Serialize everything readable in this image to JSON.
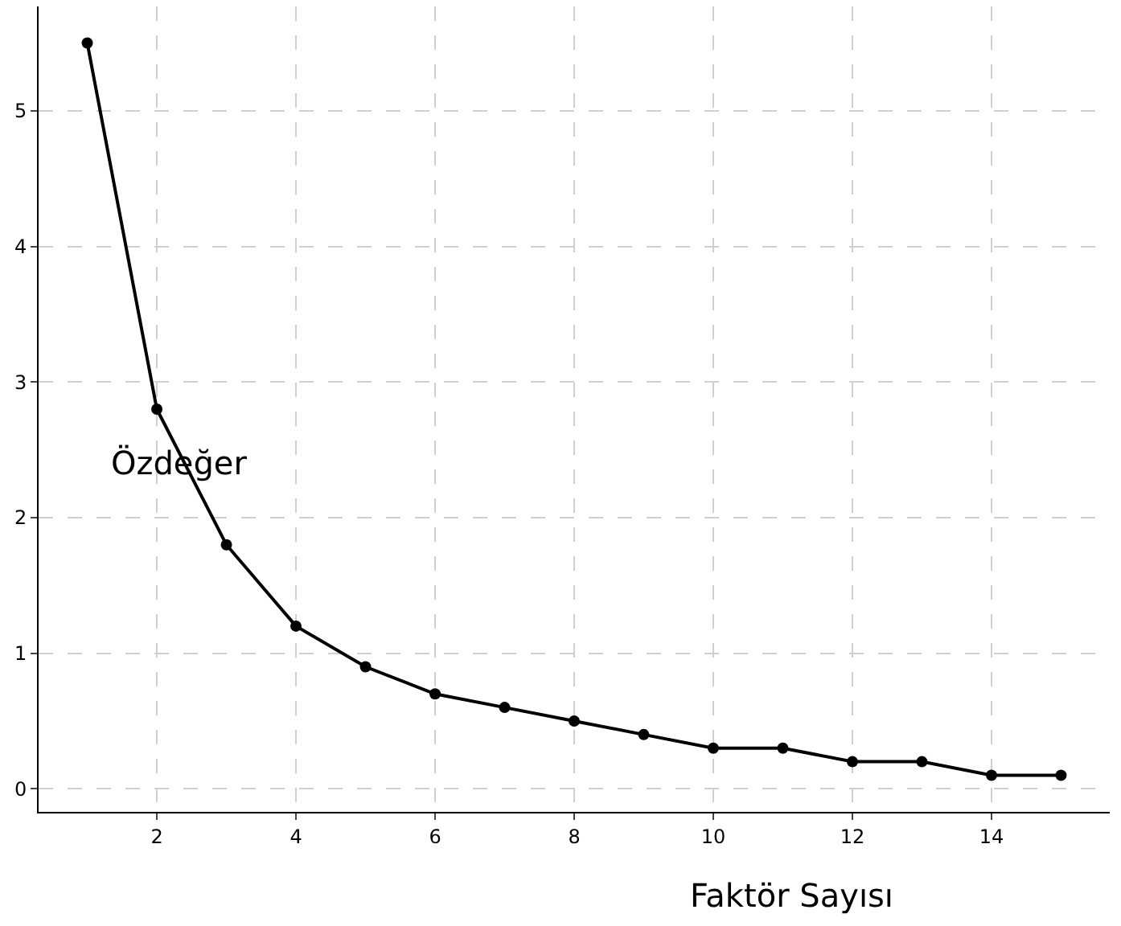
{
  "chart_data": {
    "type": "line",
    "xlabel": "Faktör Sayısı",
    "ylabel": "Özdeğer",
    "x": [
      1,
      2,
      3,
      4,
      5,
      6,
      7,
      8,
      9,
      10,
      11,
      12,
      13,
      14,
      15
    ],
    "series": [
      {
        "color": "#000000",
        "values": [
          5.5,
          2.8,
          1.8,
          1.2,
          0.9,
          0.7,
          0.6,
          0.5,
          0.4,
          0.3,
          0.3,
          0.2,
          0.2,
          0.1,
          0.1
        ]
      }
    ],
    "xlim": [
      0.3,
      15.7
    ],
    "ylim": [
      -0.17,
      5.77
    ],
    "xticks": [
      2,
      4,
      6,
      8,
      10,
      12,
      14
    ],
    "yticks": [
      0,
      1,
      2,
      3,
      4,
      5
    ],
    "grid": true,
    "marker": "circle",
    "line_style": "solid"
  }
}
